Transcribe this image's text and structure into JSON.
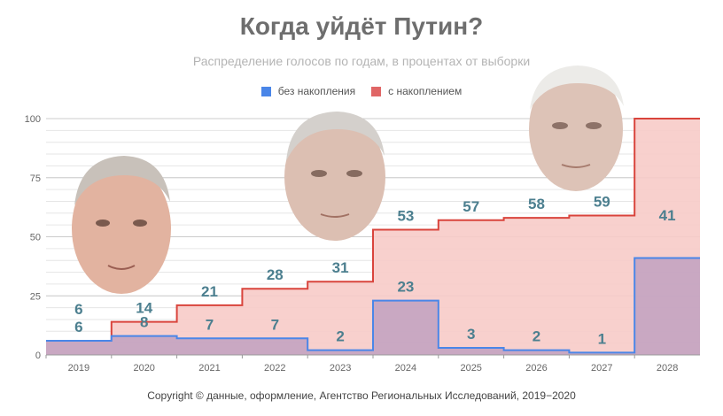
{
  "title": "Когда уйдёт Путин?",
  "subtitle": "Распределение голосов по годам, в процентах от выборки",
  "legend": [
    {
      "label": "без накопления",
      "color": "#4a86e8"
    },
    {
      "label": "с накоплением",
      "color": "#e06666"
    }
  ],
  "footer": "Copyright © данные, оформление, Агентство Региональных Исследований, 2019−2020",
  "chart_data": {
    "type": "area",
    "title": "Когда уйдёт Путин?",
    "subtitle": "Распределение голосов по годам, в процентах от выборки",
    "categories": [
      "2019",
      "2020",
      "2021",
      "2022",
      "2023",
      "2024",
      "2025",
      "2026",
      "2027",
      "2028"
    ],
    "series": [
      {
        "name": "без накопления",
        "color": "#4a86e8",
        "fill": "#c3a3c1",
        "values": [
          6,
          8,
          7,
          7,
          2,
          23,
          3,
          2,
          1,
          41
        ]
      },
      {
        "name": "с накоплением",
        "color": "#d9443c",
        "fill": "#f7cbc8",
        "values": [
          6,
          14,
          21,
          28,
          31,
          53,
          57,
          58,
          59,
          100
        ]
      }
    ],
    "ylim": [
      0,
      100
    ],
    "yticks": [
      0,
      25,
      50,
      75,
      100
    ],
    "grid": true,
    "step": true,
    "legend_position": "top-center"
  }
}
